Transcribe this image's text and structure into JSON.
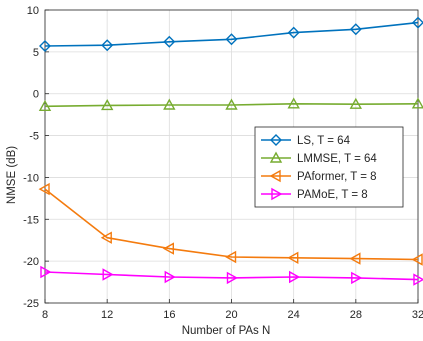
{
  "chart_data": {
    "type": "line",
    "xlabel": "Number of PAs N",
    "ylabel": "NMSE (dB)",
    "xlim": [
      8,
      32
    ],
    "ylim": [
      -25,
      10
    ],
    "xticks": [
      8,
      12,
      16,
      20,
      24,
      28,
      32
    ],
    "yticks": [
      10,
      5,
      0,
      -5,
      -10,
      -15,
      -20,
      -25
    ],
    "grid": true,
    "legend_position": "right",
    "x": [
      8,
      12,
      16,
      20,
      24,
      28,
      32
    ],
    "series": [
      {
        "name": "LS, T = 64",
        "color": "#0072BD",
        "marker": "diamond",
        "values": [
          5.7,
          5.8,
          6.2,
          6.5,
          7.3,
          7.7,
          8.5
        ]
      },
      {
        "name": "LMMSE, T = 64",
        "color": "#77AC30",
        "marker": "triangle-up",
        "values": [
          -1.5,
          -1.4,
          -1.35,
          -1.35,
          -1.2,
          -1.25,
          -1.2
        ]
      },
      {
        "name": "PAformer, T = 8",
        "color": "#F47B0E",
        "marker": "triangle-left",
        "values": [
          -11.4,
          -17.2,
          -18.5,
          -19.5,
          -19.6,
          -19.7,
          -19.8
        ]
      },
      {
        "name": "PAMoE, T = 8",
        "color": "#FF00FF",
        "marker": "triangle-right",
        "values": [
          -21.3,
          -21.6,
          -21.9,
          -22.0,
          -21.9,
          -22.0,
          -22.2
        ]
      }
    ]
  }
}
